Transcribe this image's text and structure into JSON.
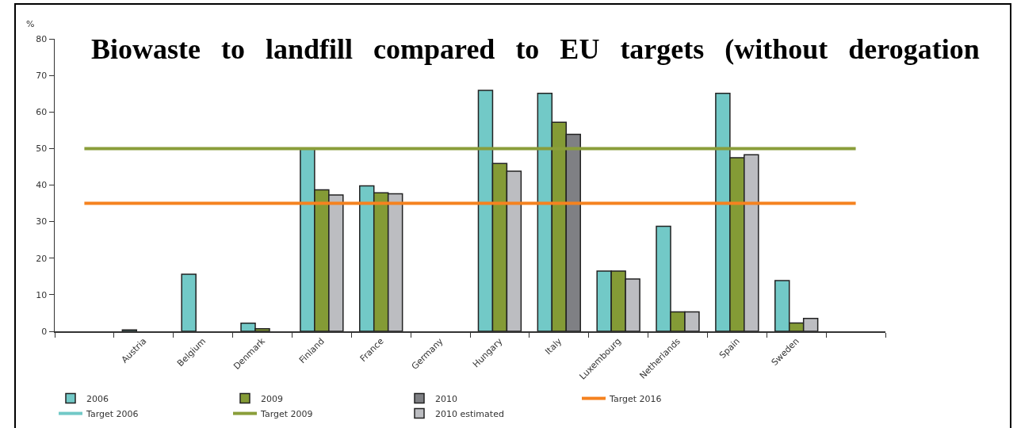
{
  "chart_data": {
    "type": "bar",
    "title": "Biowaste to landfill compared to EU targets (without derogation",
    "ylabel": "%",
    "categories": [
      null,
      "Austria",
      "Belgium",
      "Denmark",
      "Finland",
      "France",
      "Germany",
      "Hungary",
      "Italy",
      "Luxembourg",
      "Netherlands",
      "Spain",
      "Sweden",
      null
    ],
    "series": [
      {
        "name": "2006",
        "color": "#72c9c7",
        "values": [
          null,
          0.4,
          15.6,
          2.2,
          50,
          39.8,
          null,
          65.9,
          65.1,
          16.5,
          28.7,
          65.1,
          13.9,
          null
        ]
      },
      {
        "name": "2009",
        "color": "#849b36",
        "values": [
          null,
          null,
          null,
          0.7,
          38.7,
          37.9,
          null,
          45.9,
          57.2,
          16.5,
          5.3,
          47.5,
          2.3,
          null
        ]
      },
      {
        "name": "2010",
        "color": "#7f8084",
        "values": [
          null,
          null,
          null,
          null,
          null,
          null,
          null,
          null,
          53.9,
          null,
          null,
          null,
          null,
          null
        ]
      },
      {
        "name": "Target 2016",
        "type": "line",
        "color": "#f5821f",
        "values": [
          35,
          35,
          35,
          35,
          35,
          35,
          35,
          35,
          35,
          35,
          35,
          35,
          35,
          35
        ]
      },
      {
        "name": "Target 2006",
        "type": "line",
        "color": "#72c9c7",
        "values": [
          null,
          null,
          null,
          null,
          null,
          null,
          null,
          null,
          null,
          null,
          null,
          null,
          null,
          null
        ]
      },
      {
        "name": "Target 2009",
        "type": "line",
        "color": "#8a9e3a",
        "values": [
          50,
          50,
          50,
          50,
          50,
          50,
          50,
          50,
          50,
          50,
          50,
          50,
          50,
          50
        ]
      },
      {
        "name": "2010 estimated",
        "color": "#bcbdc1",
        "values": [
          null,
          null,
          null,
          null,
          37.3,
          37.6,
          null,
          43.8,
          null,
          14.3,
          5.3,
          48.3,
          3.5,
          null
        ]
      }
    ],
    "ylim": [
      0,
      80
    ],
    "yticks": [
      0,
      10,
      20,
      30,
      40,
      50,
      60,
      70,
      80
    ],
    "legend": "bottom"
  }
}
